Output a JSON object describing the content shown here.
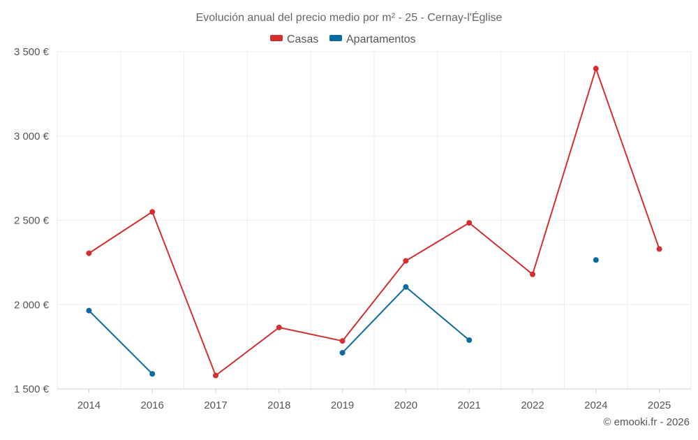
{
  "chart_data": {
    "type": "line",
    "title": "Evolución anual del precio medio por m² - 25 - Cernay-l'Église",
    "categories": [
      "2014",
      "2016",
      "2017",
      "2018",
      "2019",
      "2020",
      "2021",
      "2022",
      "2024",
      "2025"
    ],
    "series": [
      {
        "name": "Casas",
        "color": "#d32f2f",
        "values": [
          2305,
          2550,
          1580,
          1865,
          1785,
          2260,
          2485,
          2180,
          3400,
          2330
        ]
      },
      {
        "name": "Apartamentos",
        "color": "#0b6aa2",
        "values": [
          1965,
          1590,
          null,
          null,
          1715,
          2105,
          1790,
          null,
          2265,
          null
        ]
      }
    ],
    "y_ticks": [
      {
        "value": 1500,
        "label": "1 500 €"
      },
      {
        "value": 2000,
        "label": "2 000 €"
      },
      {
        "value": 2500,
        "label": "2 500 €"
      },
      {
        "value": 3000,
        "label": "3 000 €"
      },
      {
        "value": 3500,
        "label": "3 500 €"
      }
    ],
    "ylim": [
      1500,
      3500
    ],
    "xlabel": "",
    "ylabel": "",
    "grid": true,
    "legend": "top-center"
  },
  "credit": "© emooki.fr - 2026"
}
